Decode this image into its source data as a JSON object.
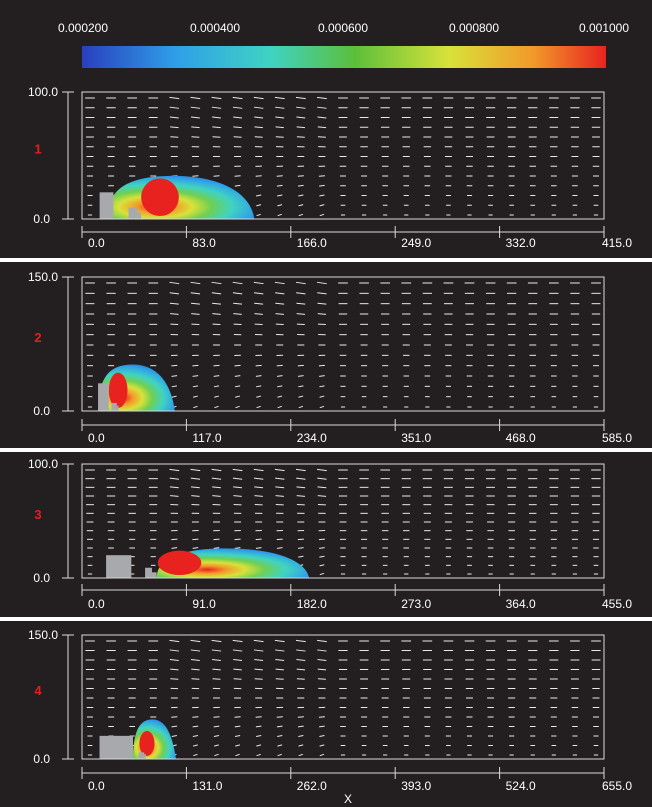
{
  "chart_data": {
    "type": "heatmap",
    "title": "",
    "xlabel": "X",
    "colorbar": {
      "ticks": [
        "0.000200",
        "0.000400",
        "0.000600",
        "0.000800",
        "0.001000"
      ],
      "range": [
        0.0002,
        0.001
      ],
      "colors": [
        "#2a3fbf",
        "#2f9fe8",
        "#3fd3c3",
        "#5bbf3a",
        "#d8e23a",
        "#f29a2a",
        "#e8231f"
      ]
    },
    "panels": [
      {
        "label": "1",
        "x_ticks": [
          "0.0",
          "83.0",
          "166.0",
          "249.0",
          "332.0",
          "415.0"
        ],
        "y_ticks": [
          "0.0",
          "100.0"
        ],
        "xlim": [
          0,
          415
        ],
        "ylim": [
          0,
          100
        ],
        "buildings": [
          [
            14,
            25,
            0,
            21
          ],
          [
            37,
            44,
            0,
            9
          ],
          [
            44,
            47,
            0,
            5
          ]
        ],
        "plume_extent_x": [
          20,
          137
        ],
        "plume_height": 34,
        "core_x": [
          47,
          77
        ],
        "core_height": 32
      },
      {
        "label": "2",
        "x_ticks": [
          "0.0",
          "117.0",
          "234.0",
          "351.0",
          "468.0",
          "585.0"
        ],
        "y_ticks": [
          "0.0",
          "150.0"
        ],
        "xlim": [
          0,
          585
        ],
        "ylim": [
          0,
          150
        ],
        "buildings": [
          [
            18,
            30,
            0,
            31
          ],
          [
            33,
            39,
            0,
            9
          ],
          [
            39,
            41,
            0,
            6
          ]
        ],
        "plume_extent_x": [
          18,
          104
        ],
        "plume_height": 52,
        "core_x": [
          30,
          51
        ],
        "core_height": 43
      },
      {
        "label": "3",
        "x_ticks": [
          "0.0",
          "91.0",
          "182.0",
          "273.0",
          "364.0",
          "455.0"
        ],
        "y_ticks": [
          "0.0",
          "100.0"
        ],
        "xlim": [
          0,
          455
        ],
        "ylim": [
          0,
          100
        ],
        "buildings": [
          [
            21,
            43,
            0,
            20
          ],
          [
            55,
            61,
            0,
            9
          ],
          [
            61,
            65,
            0,
            5
          ]
        ],
        "plume_extent_x": [
          65,
          198
        ],
        "plume_height": 26,
        "core_x": [
          66,
          104
        ],
        "core_height": 24
      },
      {
        "label": "4",
        "x_ticks": [
          "0.0",
          "131.0",
          "262.0",
          "393.0",
          "524.0",
          "655.0"
        ],
        "y_ticks": [
          "0.0",
          "150.0"
        ],
        "xlim": [
          0,
          655
        ],
        "ylim": [
          0,
          150
        ],
        "buildings": [
          [
            22,
            64,
            0,
            28
          ],
          [
            71,
            78,
            0,
            8
          ],
          [
            78,
            80,
            0,
            6
          ]
        ],
        "plume_extent_x": [
          64,
          118
        ],
        "plume_height": 48,
        "core_x": [
          72,
          91
        ],
        "core_height": 34
      }
    ]
  }
}
